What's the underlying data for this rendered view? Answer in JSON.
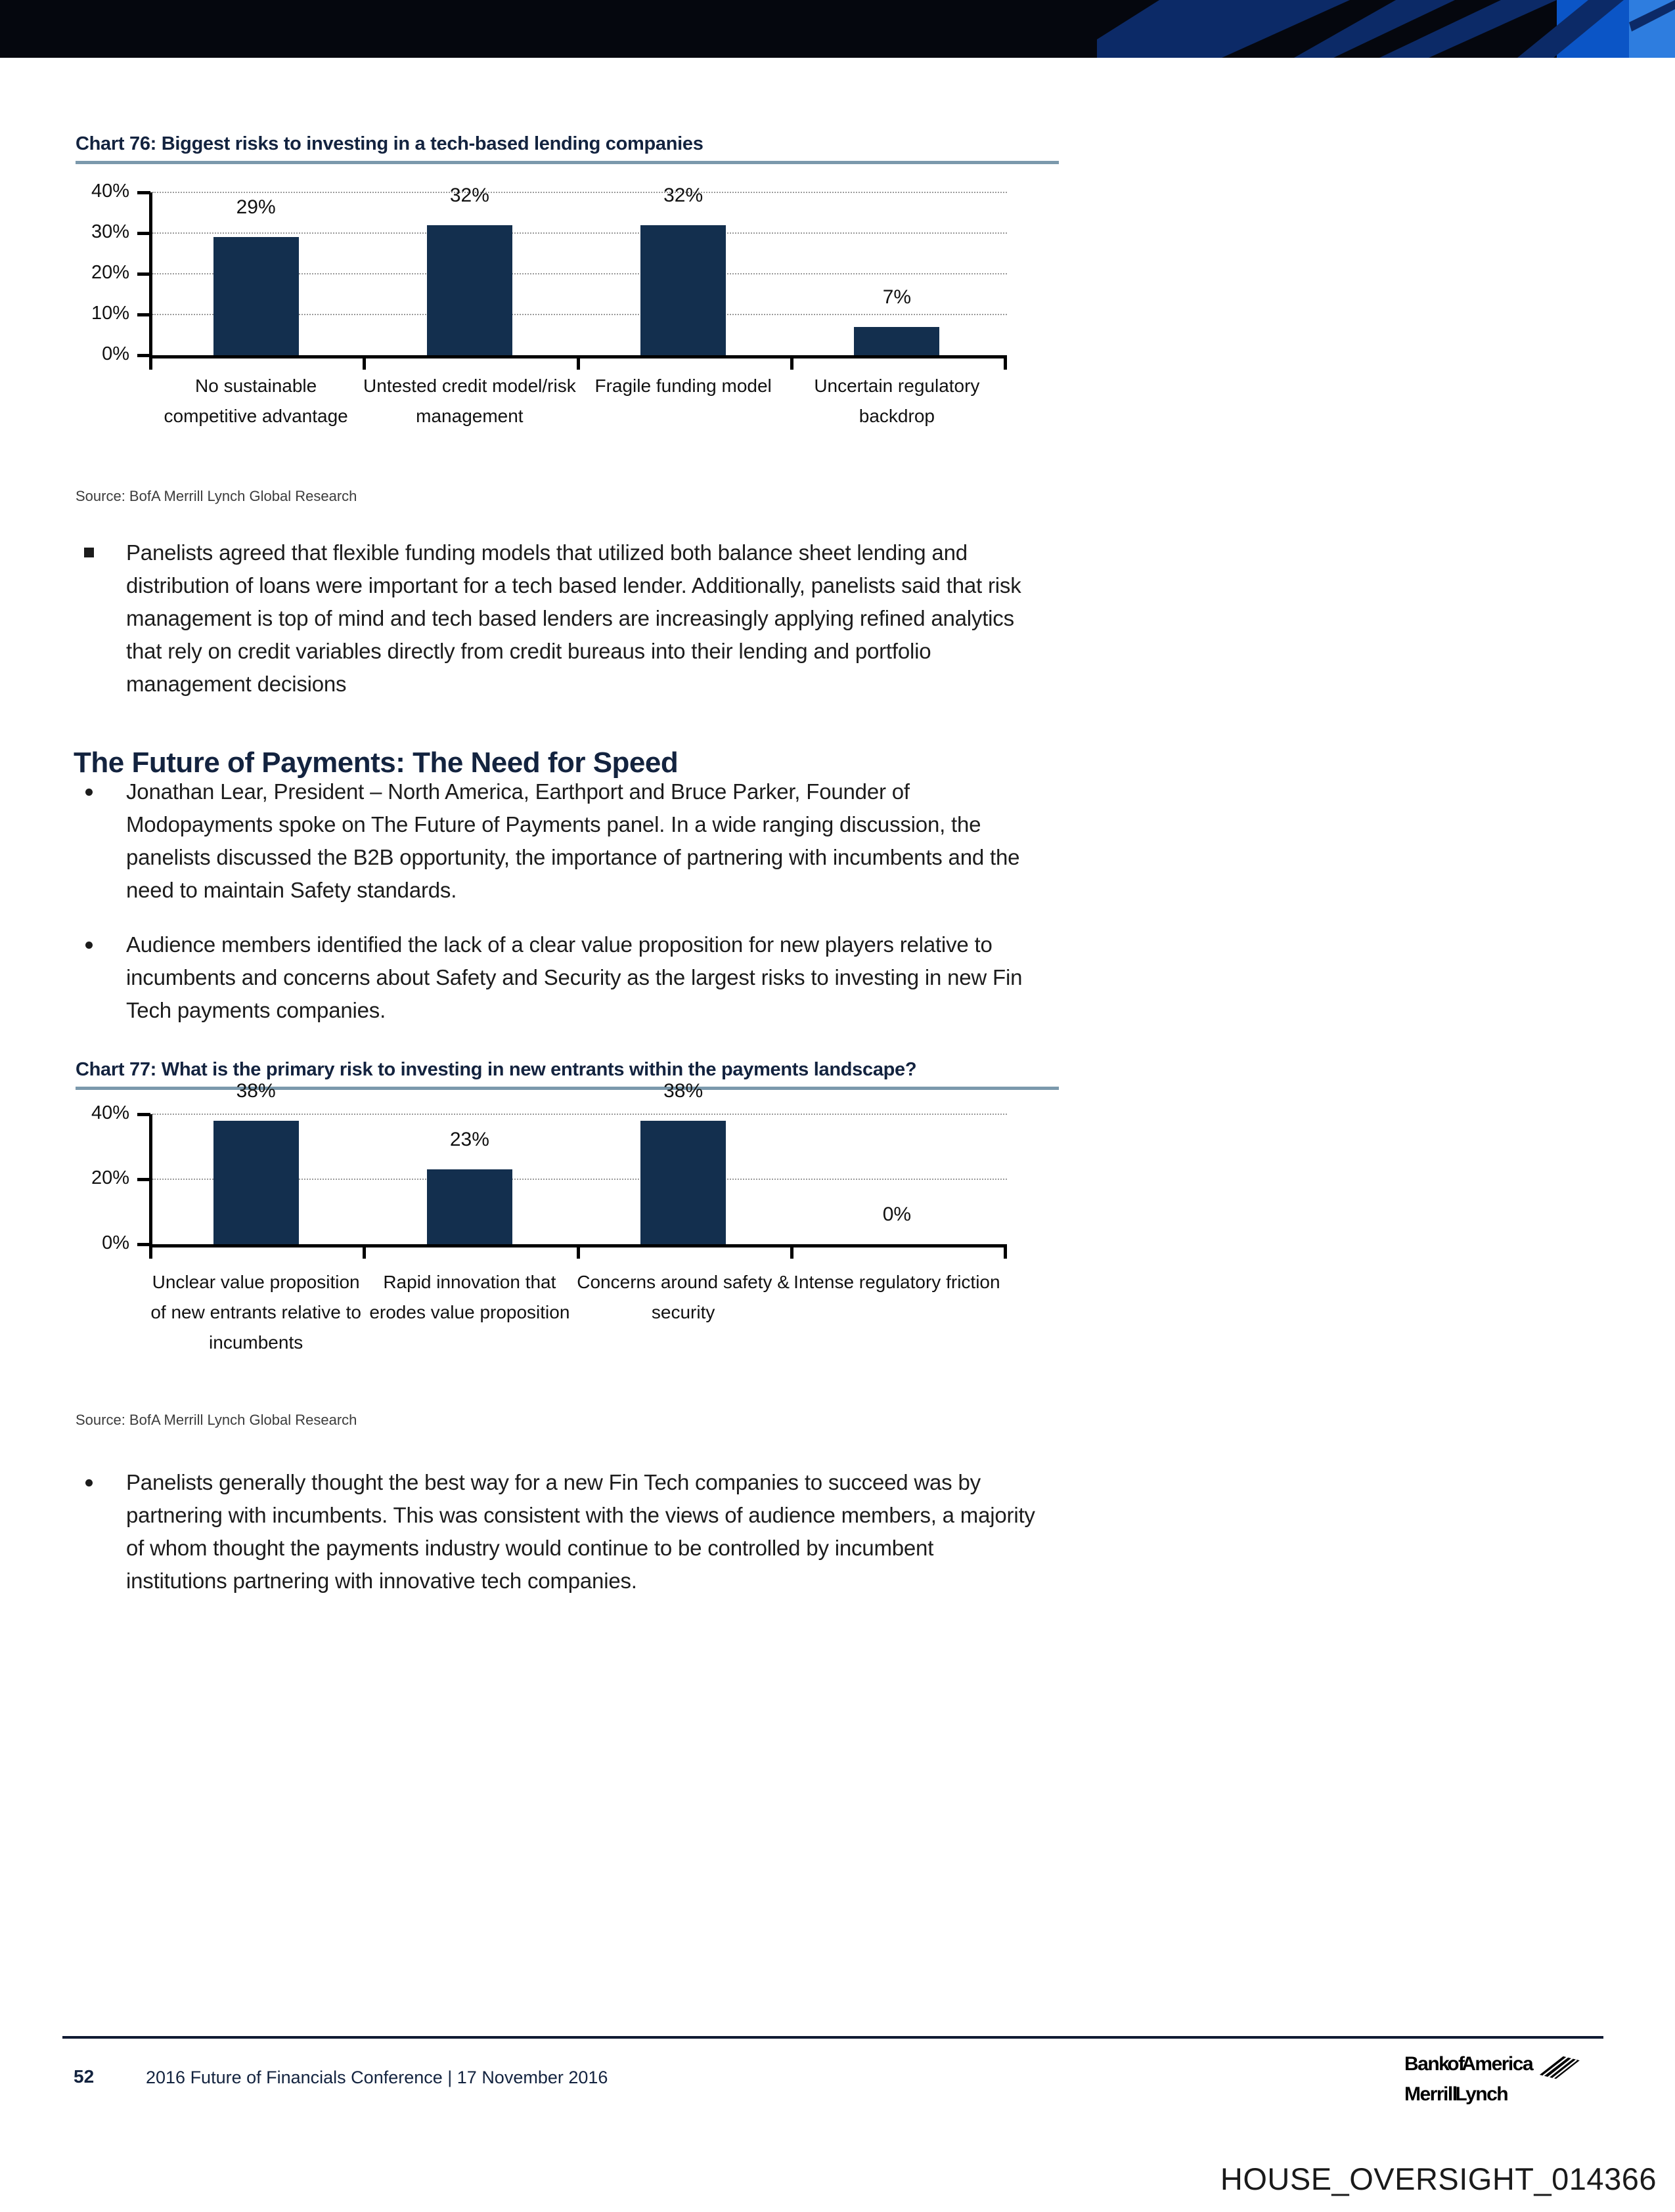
{
  "body": {
    "bullet1": "Panelists agreed that flexible funding models that utilized both balance sheet lending and distribution of loans were important for a tech based lender. Additionally, panelists said that risk management is top of mind and tech based lenders are increasingly applying refined analytics that rely on credit variables directly from credit bureaus into their lending and portfolio management decisions",
    "heading": "The Future of Payments: The Need for Speed",
    "bullet2": "Jonathan Lear, President – North America, Earthport and Bruce Parker, Founder of Modopayments spoke on The Future of Payments panel. In a wide ranging discussion, the panelists discussed the B2B opportunity, the importance of partnering with incumbents and the need to maintain Safety standards.",
    "bullet3": "Audience members identified the lack of a clear value proposition for new players relative to incumbents and concerns about Safety and Security as the largest risks to investing in new Fin Tech payments companies.",
    "bullet4": "Panelists generally thought the best way for a new Fin Tech companies to succeed was by partnering with incumbents. This was consistent with the views of audience members, a majority of whom thought the payments industry would continue to be controlled by incumbent institutions partnering with innovative tech companies."
  },
  "chart_data": [
    {
      "type": "bar",
      "title": "Chart 76: Biggest risks to investing in a tech-based lending companies",
      "categories": [
        "No sustainable competitive advantage",
        "Untested credit model/risk management",
        "Fragile funding model",
        "Uncertain regulatory backdrop"
      ],
      "values": [
        29,
        32,
        32,
        7
      ],
      "value_labels": [
        "29%",
        "32%",
        "32%",
        "7%"
      ],
      "y_ticks": [
        {
          "label": "40%",
          "value": 40
        },
        {
          "label": "30%",
          "value": 30
        },
        {
          "label": "20%",
          "value": 20
        },
        {
          "label": "10%",
          "value": 10
        },
        {
          "label": "0%",
          "value": 0
        }
      ],
      "ylim": [
        0,
        40
      ],
      "xlabel": "",
      "ylabel": "",
      "grid": "horizontal-dotted",
      "legend": "none",
      "bar_color": "#132f4e",
      "source": "Source: BofA Merrill Lynch Global Research"
    },
    {
      "type": "bar",
      "title": "Chart 77: What is the primary risk to investing in new entrants within the payments landscape?",
      "categories": [
        "Unclear value proposition of new entrants relative to incumbents",
        "Rapid innovation that erodes value proposition",
        "Concerns around safety & security",
        "Intense regulatory friction"
      ],
      "values": [
        38,
        23,
        38,
        0
      ],
      "value_labels": [
        "38%",
        "23%",
        "38%",
        "0%"
      ],
      "y_ticks": [
        {
          "label": "40%",
          "value": 40
        },
        {
          "label": "20%",
          "value": 20
        },
        {
          "label": "0%",
          "value": 0
        }
      ],
      "ylim": [
        0,
        40
      ],
      "xlabel": "",
      "ylabel": "",
      "grid": "horizontal-dotted",
      "legend": "none",
      "bar_color": "#132f4e",
      "source": "Source: BofA Merrill Lynch Global Research"
    }
  ],
  "footer": {
    "page_number": "52",
    "conference": "2016 Future of Financials Conference | 17 November 2016",
    "logo_line1": "Bank of America",
    "logo_line2": "Merrill Lynch"
  },
  "watermark": "HOUSE_OVERSIGHT_014366",
  "colors": {
    "bar": "#132f4e",
    "heading": "#13233f",
    "title_underline": "#7b99ac",
    "banner_black": "#05070e",
    "banner_navy": "#0c2a67",
    "banner_blue": "#0b55c6",
    "banner_lightblue": "#2e7ddf"
  }
}
